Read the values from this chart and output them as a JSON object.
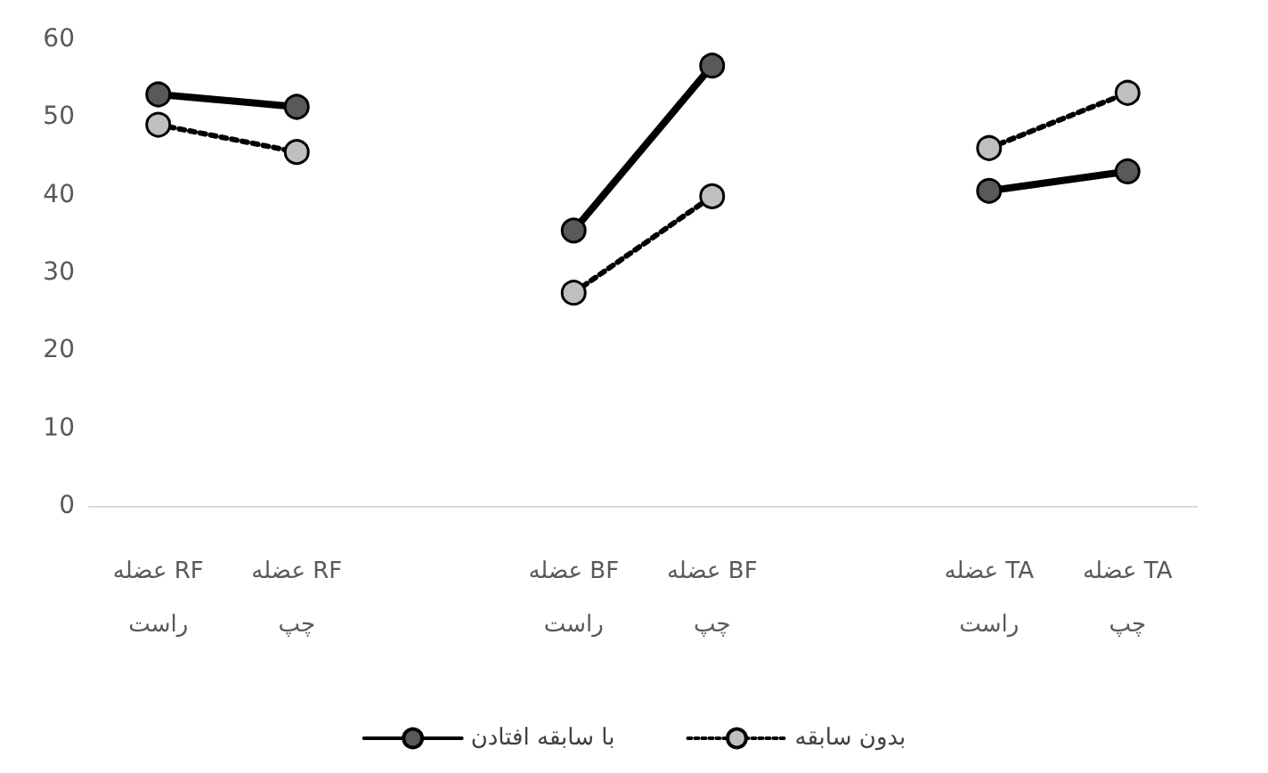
{
  "chart_data": {
    "type": "line",
    "categories": [
      "عضله RF\nراست",
      "عضله RF\nچپ",
      null,
      "عضله BF\nراست",
      "عضله BF\nچپ",
      null,
      "عضله TA\nراست",
      "عضله TA\nچپ"
    ],
    "series": [
      {
        "name": "با سابقه افتادن",
        "color": "#595959",
        "line_style": "solid",
        "values": [
          52.9,
          51.3,
          null,
          35.4,
          56.6,
          null,
          40.5,
          43.0
        ]
      },
      {
        "name": "بدون سابقه",
        "color": "#bfbfbf",
        "line_style": "dotted",
        "values": [
          49.0,
          45.5,
          null,
          27.4,
          39.8,
          null,
          46.0,
          53.1
        ]
      }
    ],
    "ylim": [
      0,
      60
    ],
    "yticks": [
      0,
      10,
      20,
      30,
      40,
      50,
      60
    ],
    "grid": false,
    "legend": "bottom",
    "marker": "circle"
  }
}
